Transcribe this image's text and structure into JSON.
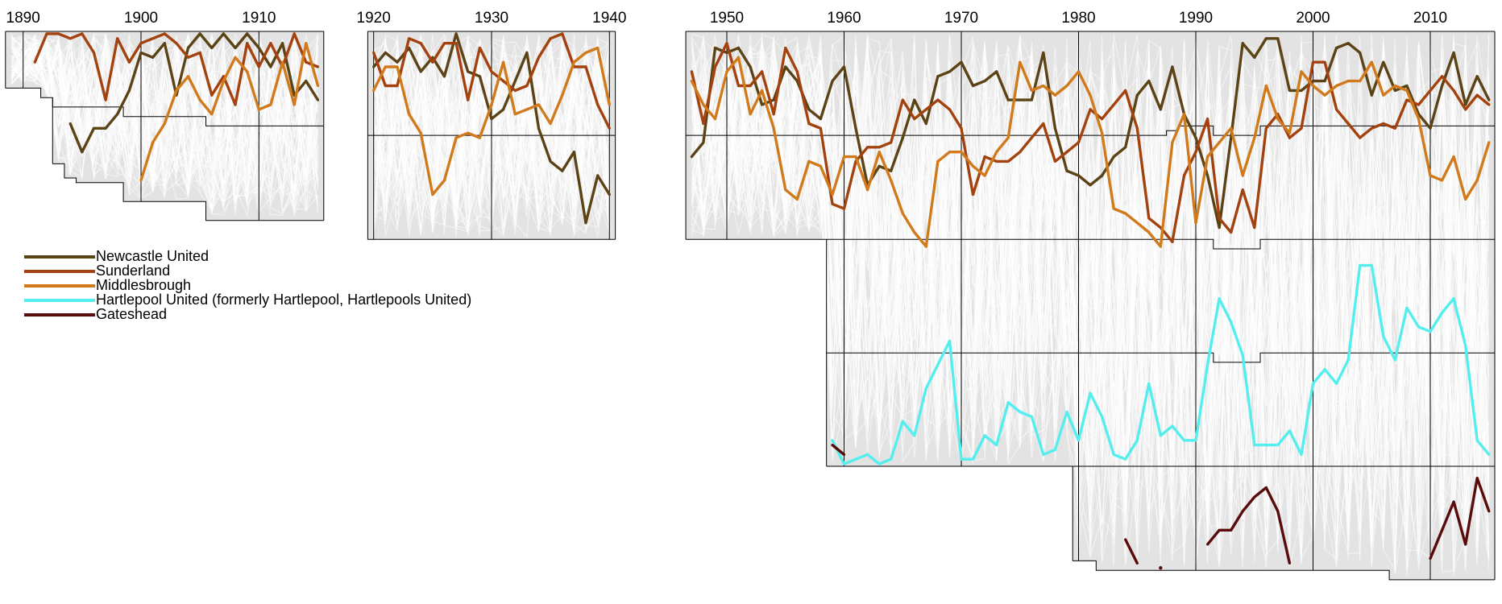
{
  "chart_data": {
    "type": "line",
    "title": "",
    "xlabel": "",
    "ylabel": "",
    "y_meaning": "overall league position (1 = top of top tier)",
    "y_inverted": true,
    "grid": true,
    "legend_position": "left-middle",
    "x_ticks": [
      "1890",
      "1900",
      "1910",
      "1920",
      "1930",
      "1940",
      "1950",
      "1960",
      "1970",
      "1980",
      "1990",
      "2000",
      "2010"
    ],
    "panels": [
      {
        "from": 1889,
        "to": 1915
      },
      {
        "from": 1920,
        "to": 1940
      },
      {
        "from": 1947,
        "to": 2015
      }
    ],
    "division_sizes": [
      {
        "from": 1889,
        "to": 1891,
        "sizes": [
          12
        ]
      },
      {
        "from": 1892,
        "to": 1892,
        "sizes": [
          14
        ]
      },
      {
        "from": 1893,
        "to": 1893,
        "sizes": [
          16,
          12
        ]
      },
      {
        "from": 1894,
        "to": 1894,
        "sizes": [
          16,
          15
        ]
      },
      {
        "from": 1895,
        "to": 1898,
        "sizes": [
          16,
          16
        ]
      },
      {
        "from": 1899,
        "to": 1905,
        "sizes": [
          18,
          18
        ]
      },
      {
        "from": 1906,
        "to": 1915,
        "sizes": [
          20,
          20
        ]
      },
      {
        "from": 1920,
        "to": 1940,
        "sizes": [
          22,
          22
        ]
      },
      {
        "from": 1947,
        "to": 1958,
        "sizes": [
          22,
          22
        ]
      },
      {
        "from": 1959,
        "to": 1979,
        "sizes": [
          22,
          22,
          24,
          24
        ]
      },
      {
        "from": 1980,
        "to": 1981,
        "sizes": [
          22,
          22,
          24,
          24,
          20
        ]
      },
      {
        "from": 1982,
        "to": 1987,
        "sizes": [
          22,
          22,
          24,
          24,
          22
        ]
      },
      {
        "from": 1988,
        "to": 1988,
        "sizes": [
          21,
          23,
          24,
          24,
          22
        ]
      },
      {
        "from": 1989,
        "to": 1991,
        "sizes": [
          20,
          24,
          24,
          24,
          22
        ]
      },
      {
        "from": 1992,
        "to": 1995,
        "sizes": [
          22,
          24,
          24,
          22,
          22
        ]
      },
      {
        "from": 1996,
        "to": 2006,
        "sizes": [
          20,
          24,
          24,
          24,
          22
        ]
      },
      {
        "from": 2007,
        "to": 2015,
        "sizes": [
          20,
          24,
          24,
          24,
          24
        ]
      }
    ],
    "series": [
      {
        "name": "Newcastle United",
        "color": "#5b4316",
        "segments": [
          {
            "start": 1894,
            "values": [
              20,
              26,
              21,
              21,
              18,
              13,
              5,
              6,
              3,
              14,
              4,
              1,
              4,
              1,
              4,
              1,
              4,
              8,
              3,
              14,
              11,
              15
            ]
          },
          {
            "start": 1920,
            "values": [
              8,
              5,
              7,
              4,
              9,
              6,
              10,
              1,
              9,
              10,
              19,
              17,
              11,
              5,
              21,
              28,
              30,
              26,
              41,
              31,
              35
            ]
          },
          {
            "start": 1947,
            "values": [
              27,
              24,
              4,
              5,
              4,
              8,
              16,
              15,
              8,
              11,
              17,
              19,
              11,
              8,
              21,
              33,
              29,
              30,
              23,
              15,
              20,
              10,
              9,
              7,
              12,
              11,
              9,
              15,
              15,
              15,
              5,
              21,
              30,
              31,
              33,
              31,
              27,
              25,
              14,
              11,
              17,
              8,
              18,
              23,
              31,
              42,
              23,
              3,
              6,
              2,
              2,
              13,
              13,
              11,
              11,
              4,
              3,
              5,
              14,
              7,
              13,
              12,
              18,
              21,
              12,
              5,
              16,
              10,
              15
            ]
          }
        ]
      },
      {
        "name": "Sunderland",
        "color": "#a3420f",
        "segments": [
          {
            "start": 1891,
            "values": [
              7,
              1,
              1,
              2,
              1,
              5,
              15,
              2,
              7,
              3,
              2,
              1,
              3,
              6,
              5,
              14,
              10,
              16,
              3,
              8,
              3,
              8,
              1,
              7,
              8
            ]
          },
          {
            "start": 1920,
            "values": [
              5,
              12,
              12,
              2,
              3,
              7,
              3,
              3,
              15,
              4,
              9,
              11,
              13,
              12,
              6,
              2,
              1,
              8,
              8,
              16,
              21
            ]
          },
          {
            "start": 1947,
            "values": [
              9,
              20,
              8,
              3,
              12,
              12,
              9,
              18,
              4,
              9,
              20,
              21,
              37,
              38,
              28,
              25,
              25,
              24,
              15,
              19,
              17,
              15,
              17,
              21,
              35,
              27,
              28,
              28,
              26,
              23,
              20,
              28,
              26,
              24,
              17,
              19,
              16,
              13,
              21,
              40,
              42,
              45,
              31,
              26,
              19,
              40,
              43,
              34,
              42,
              21,
              18,
              23,
              21,
              7,
              7,
              17,
              20,
              23,
              21,
              20,
              21,
              15,
              16,
              13,
              10,
              13,
              17,
              14,
              16
            ]
          }
        ]
      },
      {
        "name": "Middlesbrough",
        "color": "#d17a1c",
        "segments": [
          {
            "start": 1900,
            "values": [
              32,
              24,
              20,
              13,
              10,
              15,
              18,
              11,
              6,
              9,
              17,
              16,
              7,
              16,
              3,
              12
            ]
          },
          {
            "start": 1920,
            "values": [
              13,
              8,
              8,
              18,
              22,
              35,
              32,
              23,
              22,
              23,
              16,
              7,
              18,
              17,
              16,
              20,
              14,
              7,
              5,
              4,
              16
            ]
          },
          {
            "start": 1947,
            "values": [
              11,
              16,
              19,
              9,
              6,
              18,
              13,
              21,
              34,
              36,
              28,
              29,
              35,
              27,
              27,
              34,
              26,
              32,
              39,
              43,
              46,
              28,
              26,
              26,
              29,
              31,
              26,
              23,
              7,
              13,
              12,
              14,
              12,
              9,
              14,
              22,
              38,
              39,
              41,
              43,
              46,
              24,
              18,
              41,
              27,
              24,
              21,
              31,
              23,
              12,
              19,
              22,
              9,
              12,
              14,
              12,
              11,
              11,
              7,
              14,
              12,
              13,
              19,
              31,
              32,
              27,
              36,
              32,
              24
            ]
          }
        ]
      },
      {
        "name": "Hartlepool United (formerly Hartlepool, Hartlepools United)",
        "color": "#55eeee",
        "segments": [
          {
            "start": 1959,
            "values": [
              87,
              92,
              91,
              90,
              92,
              91,
              83,
              86,
              76,
              71,
              66,
              91,
              91,
              86,
              88,
              79,
              81,
              82,
              90,
              89,
              81,
              87,
              77,
              82,
              90,
              91,
              87,
              75,
              86,
              84,
              87,
              87,
              71,
              57,
              62,
              69,
              88,
              88,
              88,
              85,
              90,
              75,
              72,
              75,
              70,
              50,
              50,
              65,
              70,
              59,
              63,
              64,
              60,
              57,
              67,
              87,
              90
            ]
          }
        ]
      },
      {
        "name": "Gateshead",
        "color": "#5a0b0b",
        "segments": [
          {
            "start": 1959,
            "values": [
              88,
              90
            ]
          },
          {
            "start": 1984,
            "values": [
              108,
              113
            ]
          },
          {
            "start": 1987,
            "values": [
              114
            ]
          },
          {
            "start": 1991,
            "values": [
              109,
              106,
              106,
              102,
              99,
              97,
              102,
              113
            ]
          },
          {
            "start": 2010,
            "values": [
              112,
              106,
              100,
              109,
              95,
              102
            ]
          }
        ]
      }
    ]
  }
}
